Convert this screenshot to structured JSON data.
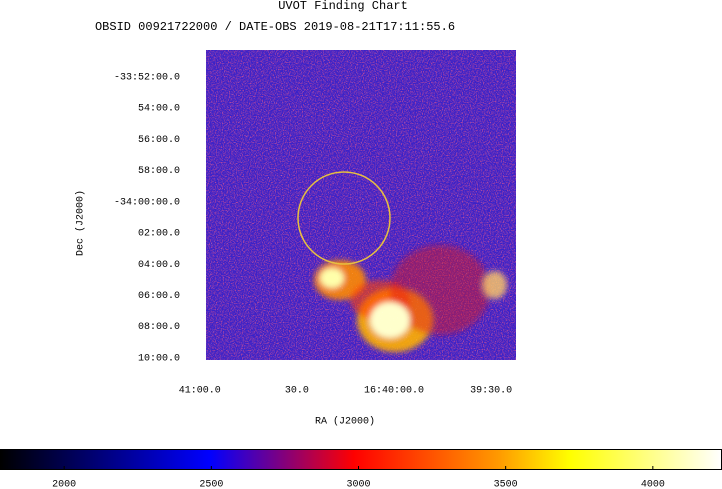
{
  "chart_data": {
    "type": "image",
    "title": "UVOT Finding Chart",
    "subtitle": "OBSID 00921722000 / DATE-OBS 2019-08-21T17:11:55.6",
    "xlabel": "RA (J2000)",
    "ylabel": "Dec (J2000)",
    "xlim": [
      250.242,
      249.843
    ],
    "xticks": [
      {
        "value": 250.25,
        "label": "41:00.0"
      },
      {
        "value": 250.125,
        "label": "30.0"
      },
      {
        "value": 250.0,
        "label": "16:40:00.0"
      },
      {
        "value": 249.875,
        "label": "39:30.0"
      }
    ],
    "ylim": [
      -34.169,
      -33.838
    ],
    "yticks": [
      {
        "value": -33.866667,
        "label": "-33:52:00.0"
      },
      {
        "value": -33.9,
        "label": "54:00.0"
      },
      {
        "value": -33.933333,
        "label": "56:00.0"
      },
      {
        "value": -33.966667,
        "label": "58:00.0"
      },
      {
        "value": -34.0,
        "label": "-34:00:00.0"
      },
      {
        "value": -34.033333,
        "label": "02:00.0"
      },
      {
        "value": -34.066667,
        "label": "04:00.0"
      },
      {
        "value": -34.1,
        "label": "06:00.0"
      },
      {
        "value": -34.133333,
        "label": "08:00.0"
      },
      {
        "value": -34.166667,
        "label": "10:00.0"
      }
    ],
    "colorbar": {
      "lim": [
        1782,
        4235
      ],
      "ticks": [
        2000,
        2500,
        3000,
        3500,
        4000
      ]
    }
  }
}
